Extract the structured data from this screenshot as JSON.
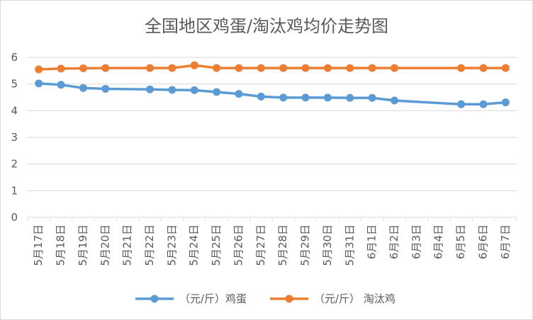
{
  "chart_data": {
    "type": "line",
    "title": "全国地区鸡蛋/淘汰鸡均价走势图",
    "categories": [
      "5月17日",
      "5月18日",
      "5月19日",
      "5月20日",
      "5月21日",
      "5月22日",
      "5月23日",
      "5月24日",
      "5月25日",
      "5月26日",
      "5月27日",
      "5月28日",
      "5月29日",
      "5月30日",
      "5月31日",
      "6月1日",
      "6月2日",
      "6月3日",
      "6月4日",
      "6月5日",
      "6月6日",
      "6月7日"
    ],
    "ylim": [
      0,
      6
    ],
    "yticks": [
      0,
      1,
      2,
      3,
      4,
      5,
      6
    ],
    "grid": true,
    "legend_position": "bottom",
    "series": [
      {
        "name": "（元/斤）鸡蛋",
        "color": "#5b9bd5",
        "values": [
          5.02,
          4.97,
          4.85,
          4.82,
          null,
          4.8,
          4.78,
          4.77,
          4.7,
          4.63,
          4.53,
          4.49,
          4.49,
          4.49,
          4.48,
          4.48,
          4.38,
          null,
          null,
          4.24,
          4.24,
          4.31
        ]
      },
      {
        "name": "（元/斤） 淘汰鸡",
        "color": "#ed7d31",
        "values": [
          5.55,
          5.58,
          5.59,
          5.6,
          null,
          5.6,
          5.6,
          5.7,
          5.6,
          5.6,
          5.6,
          5.6,
          5.6,
          5.6,
          5.6,
          5.6,
          5.6,
          null,
          null,
          5.6,
          5.6,
          5.6
        ]
      }
    ]
  }
}
